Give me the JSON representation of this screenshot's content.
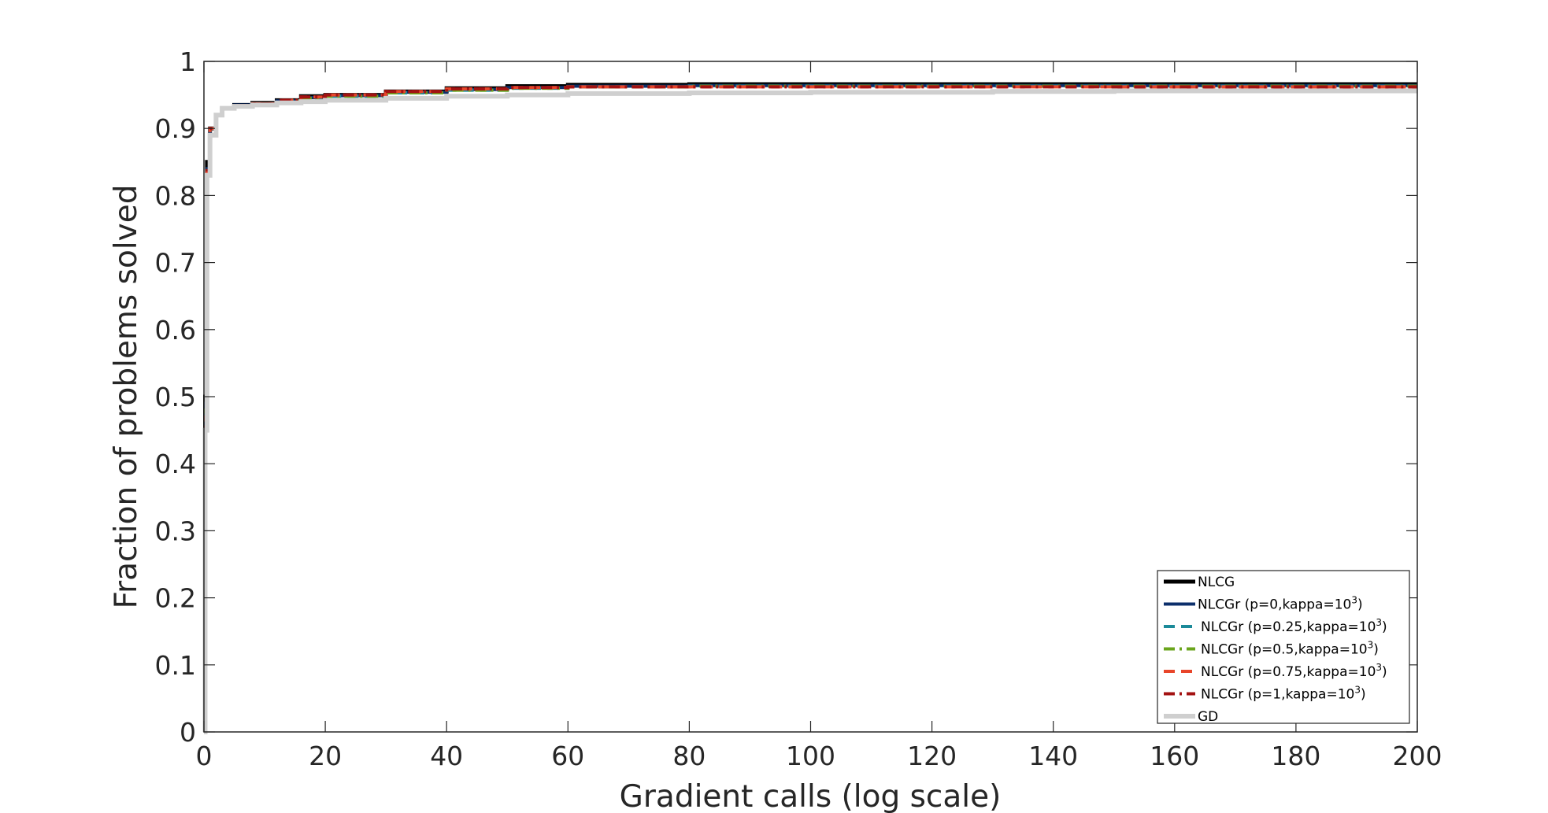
{
  "chart_data": {
    "type": "line",
    "xlabel": "Gradient calls (log scale)",
    "ylabel": "Fraction of problems solved",
    "xlim": [
      0,
      200
    ],
    "ylim": [
      0,
      1
    ],
    "xticks": [
      0,
      20,
      40,
      60,
      80,
      100,
      120,
      140,
      160,
      180,
      200
    ],
    "xtick_labels": [
      "0",
      "20",
      "40",
      "60",
      "80",
      "100",
      "120",
      "140",
      "160",
      "180",
      "200"
    ],
    "yticks": [
      0,
      0.1,
      0.2,
      0.3,
      0.4,
      0.5,
      0.6,
      0.7,
      0.8,
      0.9,
      1
    ],
    "ytick_labels": [
      "0",
      "0.1",
      "0.2",
      "0.3",
      "0.4",
      "0.5",
      "0.6",
      "0.7",
      "0.8",
      "0.9",
      "1"
    ],
    "grid": false,
    "legend_position": "bottom-right",
    "series": [
      {
        "name": "NLCG",
        "legend_main": "NLCG",
        "legend_sup": "",
        "legend_tail": "",
        "color": "#000000",
        "dash": "solid",
        "width": 5,
        "x": [
          0,
          0.2,
          0.5,
          1,
          2,
          3,
          5,
          8,
          12,
          16,
          20,
          30,
          40,
          50,
          60,
          80,
          100,
          150,
          200
        ],
        "y": [
          0,
          0.5,
          0.85,
          0.9,
          0.92,
          0.93,
          0.935,
          0.938,
          0.942,
          0.948,
          0.95,
          0.955,
          0.96,
          0.963,
          0.965,
          0.966,
          0.966,
          0.966,
          0.966
        ]
      },
      {
        "name": "NLCGr (p=0,kappa=10^3)",
        "legend_main": "NLCGr (p=0,kappa=10",
        "legend_sup": "3",
        "legend_tail": ")",
        "color": "#0c2f6b",
        "dash": "solid",
        "width": 4,
        "x": [
          0,
          0.2,
          0.5,
          1,
          2,
          3,
          5,
          8,
          12,
          16,
          20,
          30,
          40,
          50,
          60,
          80,
          100,
          150,
          200
        ],
        "y": [
          0,
          0.49,
          0.84,
          0.9,
          0.92,
          0.93,
          0.935,
          0.937,
          0.941,
          0.946,
          0.949,
          0.954,
          0.958,
          0.961,
          0.963,
          0.964,
          0.964,
          0.964,
          0.964
        ]
      },
      {
        "name": "NLCGr (p=0.25,kappa=10^3)",
        "legend_main": "NLCGr (p=0.25,kappa=10",
        "legend_sup": "3",
        "legend_tail": ")",
        "color": "#1b8a99",
        "dash": "dash",
        "width": 4,
        "x": [
          0,
          0.2,
          0.5,
          1,
          2,
          3,
          5,
          8,
          12,
          16,
          20,
          30,
          40,
          50,
          60,
          80,
          100,
          150,
          200
        ],
        "y": [
          0,
          0.48,
          0.84,
          0.9,
          0.92,
          0.93,
          0.934,
          0.937,
          0.941,
          0.945,
          0.948,
          0.953,
          0.957,
          0.96,
          0.962,
          0.963,
          0.963,
          0.963,
          0.963
        ]
      },
      {
        "name": "NLCGr (p=0.5,kappa=10^3)",
        "legend_main": "NLCGr (p=0.5,kappa=10",
        "legend_sup": "3",
        "legend_tail": ")",
        "color": "#6aa51c",
        "dash": "dashdot",
        "width": 4,
        "x": [
          0,
          0.2,
          0.5,
          1,
          2,
          3,
          5,
          8,
          12,
          16,
          20,
          30,
          40,
          50,
          60,
          80,
          100,
          150,
          200
        ],
        "y": [
          0,
          0.48,
          0.84,
          0.9,
          0.92,
          0.93,
          0.934,
          0.937,
          0.941,
          0.945,
          0.948,
          0.953,
          0.957,
          0.96,
          0.962,
          0.963,
          0.963,
          0.963,
          0.963
        ]
      },
      {
        "name": "NLCGr (p=0.75,kappa=10^3)",
        "legend_main": "NLCGr (p=0.75,kappa=10",
        "legend_sup": "3",
        "legend_tail": ")",
        "color": "#e8452a",
        "dash": "dash",
        "width": 4,
        "x": [
          0,
          0.2,
          0.5,
          1,
          2,
          3,
          5,
          8,
          12,
          16,
          20,
          30,
          40,
          50,
          60,
          80,
          100,
          150,
          200
        ],
        "y": [
          0,
          0.47,
          0.84,
          0.9,
          0.92,
          0.93,
          0.934,
          0.937,
          0.942,
          0.947,
          0.95,
          0.955,
          0.959,
          0.961,
          0.962,
          0.962,
          0.962,
          0.962,
          0.962
        ]
      },
      {
        "name": "NLCGr (p=1,kappa=10^3)",
        "legend_main": "NLCGr (p=1,kappa=10",
        "legend_sup": "3",
        "legend_tail": ")",
        "color": "#a31212",
        "dash": "dashdot",
        "width": 4,
        "x": [
          0,
          0.2,
          0.5,
          1,
          2,
          3,
          5,
          8,
          12,
          16,
          20,
          30,
          40,
          50,
          60,
          80,
          100,
          150,
          200
        ],
        "y": [
          0,
          0.46,
          0.84,
          0.9,
          0.92,
          0.93,
          0.934,
          0.937,
          0.942,
          0.947,
          0.95,
          0.955,
          0.959,
          0.961,
          0.962,
          0.962,
          0.962,
          0.962,
          0.962
        ]
      },
      {
        "name": "GD",
        "legend_main": "GD",
        "legend_sup": "",
        "legend_tail": "",
        "color": "#cfcfcf",
        "dash": "solid",
        "width": 6,
        "x": [
          0,
          0.2,
          0.5,
          1,
          2,
          3,
          5,
          8,
          12,
          16,
          20,
          30,
          40,
          50,
          60,
          80,
          100,
          130,
          150,
          200
        ],
        "y": [
          0,
          0.45,
          0.83,
          0.89,
          0.92,
          0.93,
          0.933,
          0.935,
          0.938,
          0.94,
          0.942,
          0.945,
          0.948,
          0.95,
          0.952,
          0.953,
          0.954,
          0.955,
          0.956,
          0.956
        ]
      }
    ]
  }
}
